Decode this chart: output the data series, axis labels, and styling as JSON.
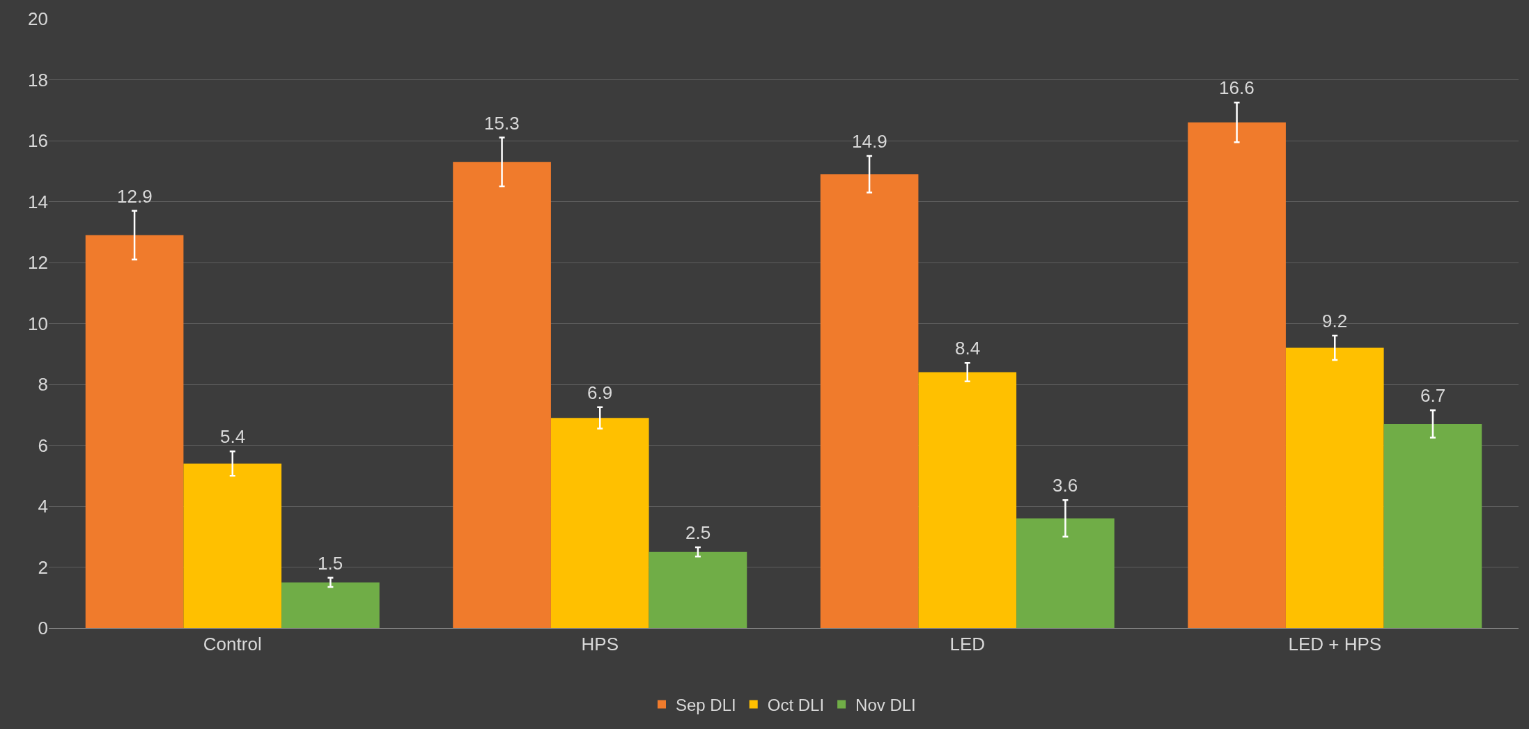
{
  "chart_data": {
    "type": "bar",
    "categories": [
      "Control",
      "HPS",
      "LED",
      "LED + HPS"
    ],
    "series": [
      {
        "name": "Sep DLI",
        "color": "#f07b2c",
        "values": [
          12.9,
          15.3,
          14.9,
          16.6
        ],
        "errors": [
          0.8,
          0.8,
          0.6,
          0.65
        ]
      },
      {
        "name": "Oct DLI",
        "color": "#ffc000",
        "values": [
          5.4,
          6.9,
          8.4,
          9.2
        ],
        "errors": [
          0.4,
          0.35,
          0.3,
          0.4
        ]
      },
      {
        "name": "Nov DLI",
        "color": "#70ad47",
        "values": [
          1.5,
          2.5,
          3.6,
          6.7
        ],
        "errors": [
          0.15,
          0.15,
          0.6,
          0.45
        ]
      }
    ],
    "ylim": [
      0,
      20
    ],
    "yticks": [
      0,
      2,
      4,
      6,
      8,
      10,
      12,
      14,
      16,
      18,
      20
    ],
    "grid": "y",
    "legend": "bottom",
    "data_labels": true
  }
}
